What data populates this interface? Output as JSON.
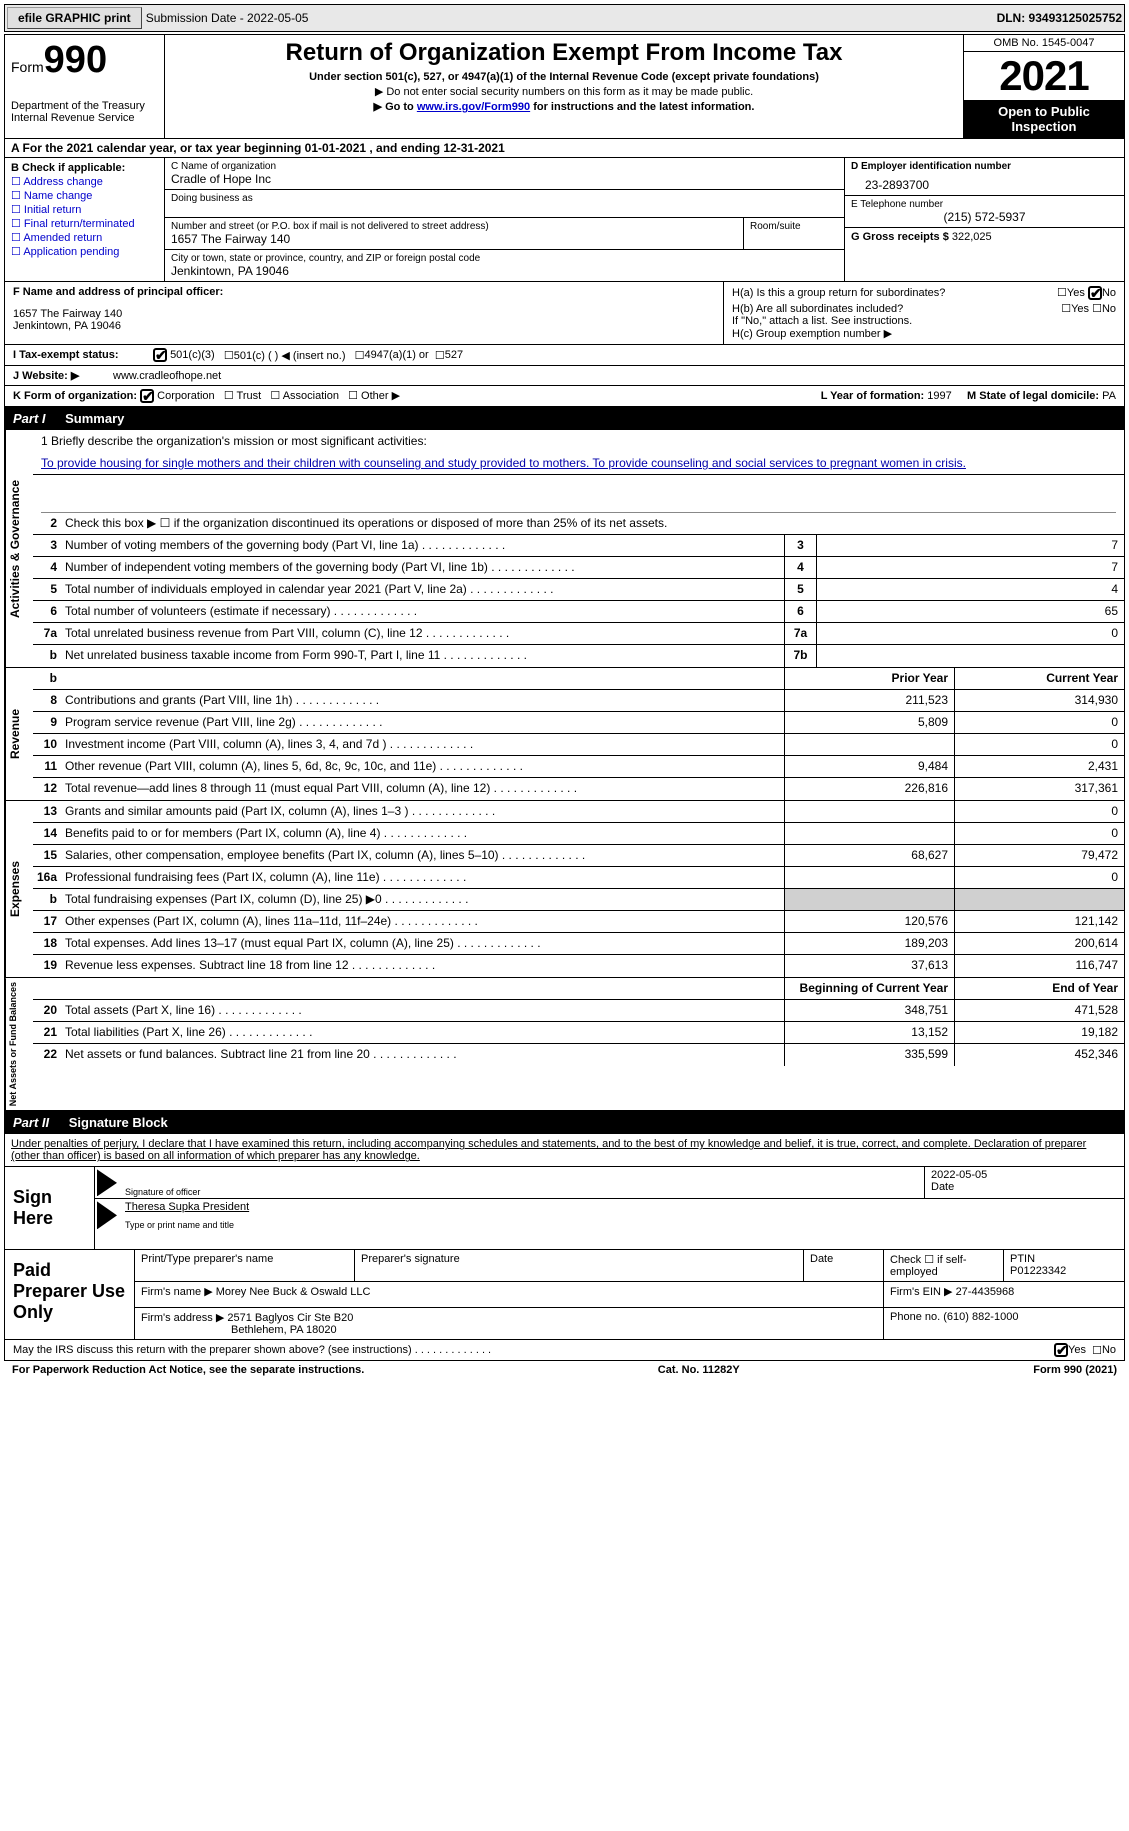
{
  "topbar": {
    "efile_btn": "efile GRAPHIC print",
    "sub_label": "Submission Date - 2022-05-05",
    "dln": "DLN: 93493125025752"
  },
  "header": {
    "form_word": "Form",
    "form_num": "990",
    "dept": "Department of the Treasury",
    "irs": "Internal Revenue Service",
    "title": "Return of Organization Exempt From Income Tax",
    "sub1": "Under section 501(c), 527, or 4947(a)(1) of the Internal Revenue Code (except private foundations)",
    "sub2": "▶ Do not enter social security numbers on this form as it may be made public.",
    "sub3_pre": "▶ Go to ",
    "sub3_link": "www.irs.gov/Form990",
    "sub3_post": " for instructions and the latest information.",
    "omb": "OMB No. 1545-0047",
    "year": "2021",
    "open": "Open to Public Inspection"
  },
  "sectionA": "A For the 2021 calendar year, or tax year beginning 01-01-2021   , and ending 12-31-2021",
  "colB": {
    "title": "B Check if applicable:",
    "opts": [
      "Address change",
      "Name change",
      "Initial return",
      "Final return/terminated",
      "Amended return",
      "Application pending"
    ]
  },
  "colC": {
    "name_label": "C Name of organization",
    "name": "Cradle of Hope Inc",
    "dba_label": "Doing business as",
    "addr_label": "Number and street (or P.O. box if mail is not delivered to street address)",
    "room_label": "Room/suite",
    "addr": "1657 The Fairway 140",
    "city_label": "City or town, state or province, country, and ZIP or foreign postal code",
    "city": "Jenkintown, PA  19046"
  },
  "colD": {
    "ein_label": "D Employer identification number",
    "ein": "23-2893700",
    "phone_label": "E Telephone number",
    "phone": "(215) 572-5937",
    "gross_label": "G Gross receipts $",
    "gross": "322,025"
  },
  "officer": {
    "f_label": "F  Name and address of principal officer:",
    "addr1": "1657 The Fairway 140",
    "addr2": "Jenkintown, PA  19046",
    "ha": "H(a)  Is this a group return for subordinates?",
    "hb": "H(b)  Are all subordinates included?",
    "hb_note": "If \"No,\" attach a list. See instructions.",
    "hc": "H(c)  Group exemption number ▶"
  },
  "tax": {
    "i_label": "I  Tax-exempt status:",
    "opt1": "501(c)(3)",
    "opt2": "501(c) (  ) ◀ (insert no.)",
    "opt3": "4947(a)(1) or",
    "opt4": "527"
  },
  "web": {
    "j_label": "J  Website: ▶",
    "url": "www.cradleofhope.net"
  },
  "korg": {
    "k_label": "K Form of organization:",
    "opts": [
      "Corporation",
      "Trust",
      "Association",
      "Other ▶"
    ],
    "l_label": "L Year of formation:",
    "l_val": "1997",
    "m_label": "M State of legal domicile:",
    "m_val": "PA"
  },
  "part1": {
    "label": "Part I",
    "title": "Summary"
  },
  "mission": {
    "line1_label": "1  Briefly describe the organization's mission or most significant activities:",
    "text": "To provide housing for single mothers and their children with counseling and study provided to mothers. To provide counseling and social services to pregnant women in crisis."
  },
  "gov_lines": [
    {
      "n": "2",
      "t": "Check this box ▶ ☐ if the organization discontinued its operations or disposed of more than 25% of its net assets."
    },
    {
      "n": "3",
      "t": "Number of voting members of the governing body (Part VI, line 1a)",
      "box": "3",
      "v": "7"
    },
    {
      "n": "4",
      "t": "Number of independent voting members of the governing body (Part VI, line 1b)",
      "box": "4",
      "v": "7"
    },
    {
      "n": "5",
      "t": "Total number of individuals employed in calendar year 2021 (Part V, line 2a)",
      "box": "5",
      "v": "4"
    },
    {
      "n": "6",
      "t": "Total number of volunteers (estimate if necessary)",
      "box": "6",
      "v": "65"
    },
    {
      "n": "7a",
      "t": "Total unrelated business revenue from Part VIII, column (C), line 12",
      "box": "7a",
      "v": "0"
    },
    {
      "n": "b",
      "t": "Net unrelated business taxable income from Form 990-T, Part I, line 11",
      "box": "7b",
      "v": ""
    }
  ],
  "rev_header": {
    "prior": "Prior Year",
    "curr": "Current Year"
  },
  "rev_lines": [
    {
      "n": "8",
      "t": "Contributions and grants (Part VIII, line 1h)",
      "p": "211,523",
      "c": "314,930"
    },
    {
      "n": "9",
      "t": "Program service revenue (Part VIII, line 2g)",
      "p": "5,809",
      "c": "0"
    },
    {
      "n": "10",
      "t": "Investment income (Part VIII, column (A), lines 3, 4, and 7d )",
      "p": "",
      "c": "0"
    },
    {
      "n": "11",
      "t": "Other revenue (Part VIII, column (A), lines 5, 6d, 8c, 9c, 10c, and 11e)",
      "p": "9,484",
      "c": "2,431"
    },
    {
      "n": "12",
      "t": "Total revenue—add lines 8 through 11 (must equal Part VIII, column (A), line 12)",
      "p": "226,816",
      "c": "317,361"
    }
  ],
  "exp_lines": [
    {
      "n": "13",
      "t": "Grants and similar amounts paid (Part IX, column (A), lines 1–3 )",
      "p": "",
      "c": "0"
    },
    {
      "n": "14",
      "t": "Benefits paid to or for members (Part IX, column (A), line 4)",
      "p": "",
      "c": "0"
    },
    {
      "n": "15",
      "t": "Salaries, other compensation, employee benefits (Part IX, column (A), lines 5–10)",
      "p": "68,627",
      "c": "79,472"
    },
    {
      "n": "16a",
      "t": "Professional fundraising fees (Part IX, column (A), line 11e)",
      "p": "",
      "c": "0"
    },
    {
      "n": "b",
      "t": "Total fundraising expenses (Part IX, column (D), line 25) ▶0",
      "p": "shade",
      "c": "shade"
    },
    {
      "n": "17",
      "t": "Other expenses (Part IX, column (A), lines 11a–11d, 11f–24e)",
      "p": "120,576",
      "c": "121,142"
    },
    {
      "n": "18",
      "t": "Total expenses. Add lines 13–17 (must equal Part IX, column (A), line 25)",
      "p": "189,203",
      "c": "200,614"
    },
    {
      "n": "19",
      "t": "Revenue less expenses. Subtract line 18 from line 12",
      "p": "37,613",
      "c": "116,747"
    }
  ],
  "net_header": {
    "beg": "Beginning of Current Year",
    "end": "End of Year"
  },
  "net_lines": [
    {
      "n": "20",
      "t": "Total assets (Part X, line 16)",
      "p": "348,751",
      "c": "471,528"
    },
    {
      "n": "21",
      "t": "Total liabilities (Part X, line 26)",
      "p": "13,152",
      "c": "19,182"
    },
    {
      "n": "22",
      "t": "Net assets or fund balances. Subtract line 21 from line 20",
      "p": "335,599",
      "c": "452,346"
    }
  ],
  "part2": {
    "label": "Part II",
    "title": "Signature Block"
  },
  "sig_intro": "Under penalties of perjury, I declare that I have examined this return, including accompanying schedules and statements, and to the best of my knowledge and belief, it is true, correct, and complete. Declaration of preparer (other than officer) is based on all information of which preparer has any knowledge.",
  "sign": {
    "label": "Sign Here",
    "sig_of": "Signature of officer",
    "date": "2022-05-05",
    "date_label": "Date",
    "name": "Theresa Supka  President",
    "name_label": "Type or print name and title"
  },
  "prep": {
    "label": "Paid Preparer Use Only",
    "print_label": "Print/Type preparer's name",
    "sig_label": "Preparer's signature",
    "date_label": "Date",
    "check_label": "Check ☐ if self-employed",
    "ptin_label": "PTIN",
    "ptin": "P01223342",
    "firm_name_label": "Firm's name    ▶",
    "firm_name": "Morey Nee Buck & Oswald LLC",
    "firm_ein_label": "Firm's EIN ▶",
    "firm_ein": "27-4435968",
    "firm_addr_label": "Firm's address ▶",
    "firm_addr": "2571 Baglyos Cir Ste B20",
    "firm_city": "Bethlehem, PA  18020",
    "firm_phone_label": "Phone no.",
    "firm_phone": "(610) 882-1000"
  },
  "discuss": "May the IRS discuss this return with the preparer shown above? (see instructions)",
  "footer": {
    "pra": "For Paperwork Reduction Act Notice, see the separate instructions.",
    "cat": "Cat. No. 11282Y",
    "form": "Form 990 (2021)"
  },
  "yesno": {
    "yes": "Yes",
    "no": "No"
  }
}
